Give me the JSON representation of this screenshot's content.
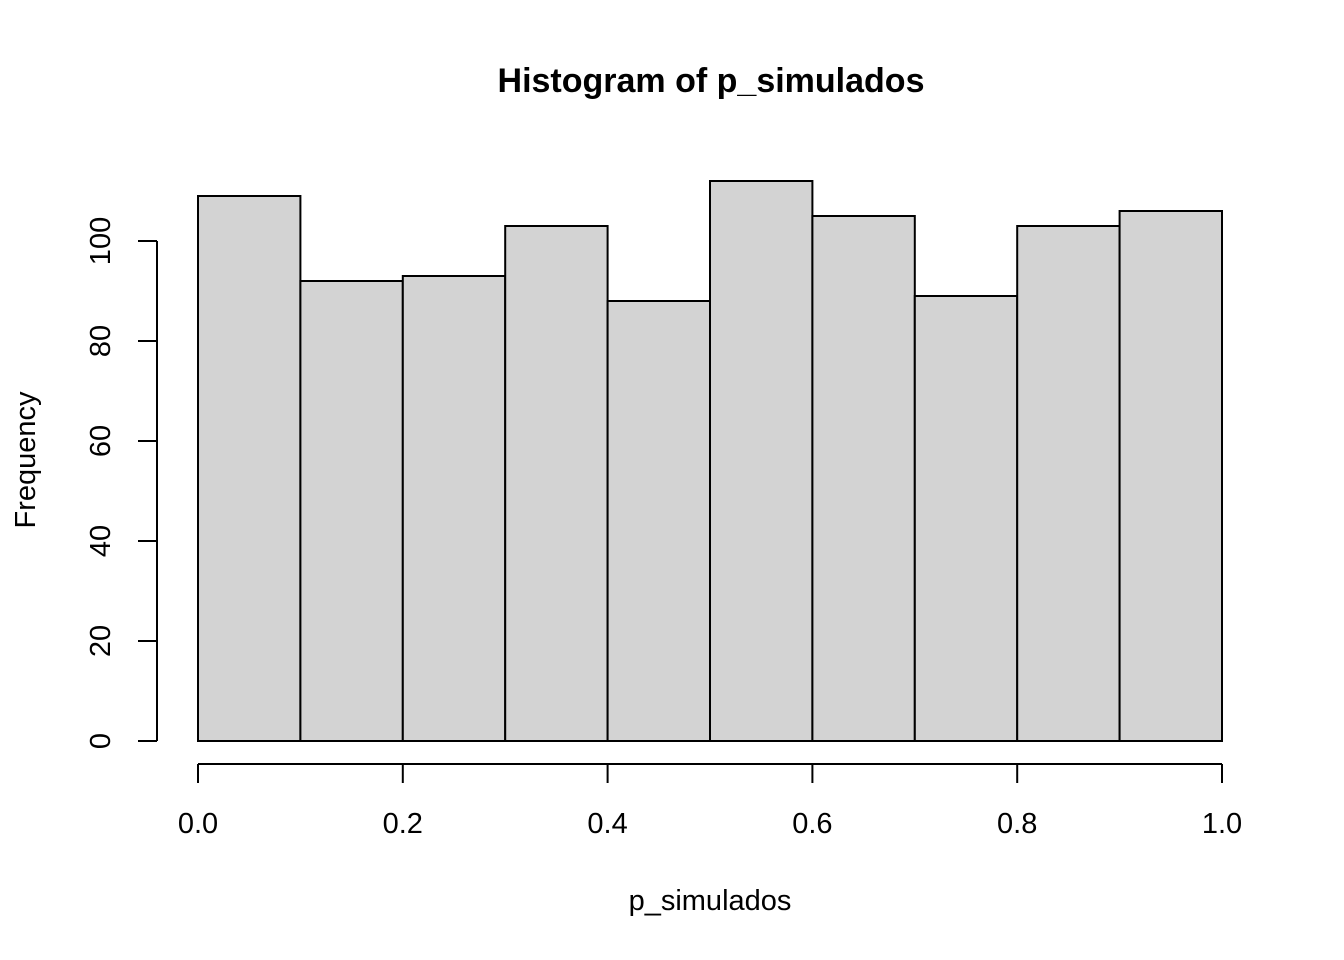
{
  "chart_data": {
    "type": "bar",
    "title": "Histogram of p_simulados",
    "xlabel": "p_simulados",
    "ylabel": "Frequency",
    "bins": [
      {
        "start": 0.0,
        "end": 0.1,
        "count": 109
      },
      {
        "start": 0.1,
        "end": 0.2,
        "count": 92
      },
      {
        "start": 0.2,
        "end": 0.3,
        "count": 93
      },
      {
        "start": 0.3,
        "end": 0.4,
        "count": 103
      },
      {
        "start": 0.4,
        "end": 0.5,
        "count": 88
      },
      {
        "start": 0.5,
        "end": 0.6,
        "count": 112
      },
      {
        "start": 0.6,
        "end": 0.7,
        "count": 105
      },
      {
        "start": 0.7,
        "end": 0.8,
        "count": 89
      },
      {
        "start": 0.8,
        "end": 0.9,
        "count": 103
      },
      {
        "start": 0.9,
        "end": 1.0,
        "count": 106
      }
    ],
    "xlim": [
      0,
      1
    ],
    "ylim": [
      0,
      112
    ],
    "x_ticks": [
      0.0,
      0.2,
      0.4,
      0.6,
      0.8,
      1.0
    ],
    "x_tick_labels": [
      "0.0",
      "0.2",
      "0.4",
      "0.6",
      "0.8",
      "1.0"
    ],
    "y_ticks": [
      0,
      20,
      40,
      60,
      80,
      100
    ],
    "y_tick_labels": [
      "0",
      "20",
      "40",
      "60",
      "80",
      "100"
    ],
    "grid": false,
    "colors": {
      "bar_fill": "#d3d3d3",
      "bar_stroke": "#000000",
      "axis": "#000000"
    }
  }
}
